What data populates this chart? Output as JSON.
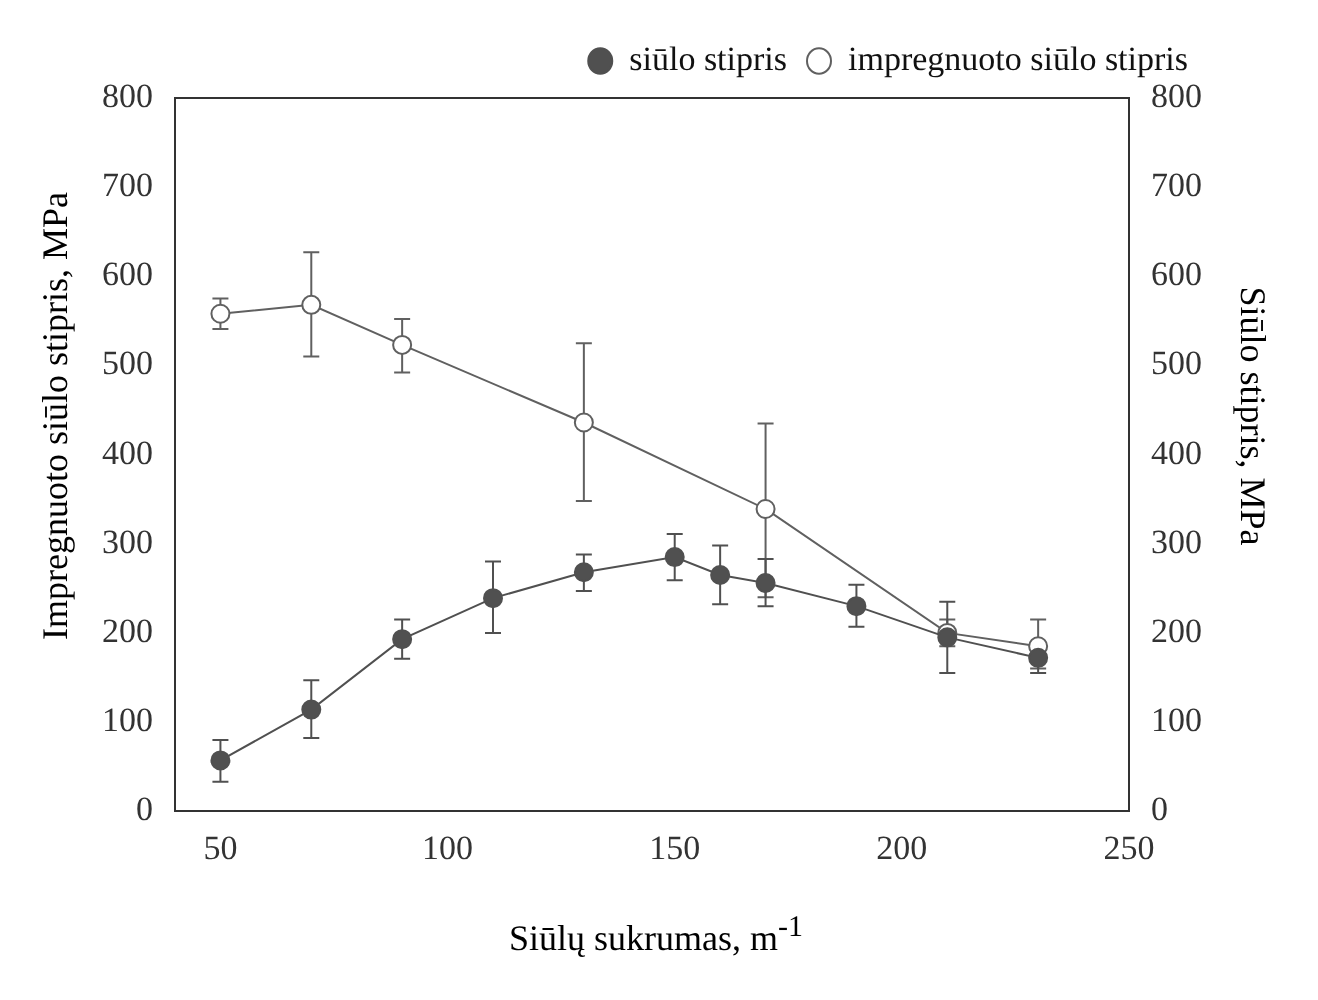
{
  "chart_data": {
    "type": "line",
    "xlabel": "Siūlų sukrumas, m$^{-1}$",
    "ylabel": "Impregnuoto siūlo stipris, MPa",
    "y2label": "Siūlo stipris, MPa",
    "xlim": [
      40,
      250
    ],
    "xticks": [
      50,
      100,
      150,
      200,
      250
    ],
    "ylim": [
      0,
      800
    ],
    "yticks": [
      0,
      100,
      200,
      300,
      400,
      500,
      600,
      700,
      800
    ],
    "y2lim": [
      0,
      800
    ],
    "y2ticks": [
      0,
      100,
      200,
      300,
      400,
      500,
      600,
      700,
      800
    ],
    "grid": false,
    "legend": "top right",
    "marker": "circle",
    "line_style": "solid",
    "series": [
      {
        "name": "impregnuoto siūlo stipris",
        "color": "#606060",
        "marker": "circle",
        "x": [
          50,
          70,
          90,
          130,
          170,
          210,
          230
        ],
        "values": [
          558,
          568,
          523,
          436,
          339,
          200,
          185
        ],
        "errors": [
          17,
          [
            510,
            627
          ],
          [
            492,
            552
          ],
          [
            348,
            525
          ],
          [
            240,
            435
          ],
          [
            185,
            215
          ],
          [
            160,
            215
          ]
        ]
      },
      {
        "name": "siūlo stipris",
        "color": "#505050",
        "axis": "y2",
        "x": [
          50,
          70,
          90,
          110,
          130,
          150,
          160,
          170,
          190,
          210,
          230
        ],
        "values": [
          57,
          114,
          193,
          239,
          268,
          285,
          265,
          256,
          230,
          195,
          172
        ],
        "errors": [
          [
            33,
            80
          ],
          [
            82,
            147
          ],
          [
            171,
            215
          ],
          [
            200,
            280
          ],
          [
            247,
            288
          ],
          [
            259,
            311
          ],
          [
            232,
            298
          ],
          [
            230,
            283
          ],
          [
            207,
            254
          ],
          [
            155,
            235
          ],
          [
            155,
            185
          ]
        ]
      }
    ]
  }
}
